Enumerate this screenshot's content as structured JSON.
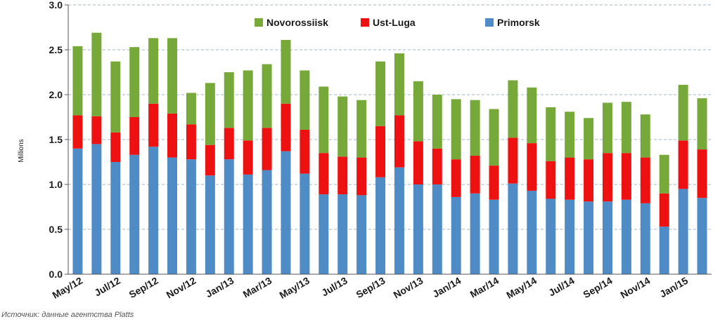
{
  "chart_data": {
    "type": "bar",
    "stacked": true,
    "ylabel": "Millions",
    "ylim": [
      0,
      3.0
    ],
    "yticks": [
      "0.0",
      "0.5",
      "1.0",
      "1.5",
      "2.0",
      "2.5",
      "3.0"
    ],
    "grid": true,
    "legend_position": "top-center",
    "categories": [
      "May/12",
      "Jun/12",
      "Jul/12",
      "Aug/12",
      "Sep/12",
      "Oct/12",
      "Nov/12",
      "Dec/12",
      "Jan/13",
      "Feb/13",
      "Mar/13",
      "Apr/13",
      "May/13",
      "Jun/13",
      "Jul/13",
      "Aug/13",
      "Sep/13",
      "Oct/13",
      "Nov/13",
      "Dec/13",
      "Jan/14",
      "Feb/14",
      "Mar/14",
      "Apr/14",
      "May/14",
      "Jun/14",
      "Jul/14",
      "Aug/14",
      "Sep/14",
      "Oct/14",
      "Nov/14",
      "Dec/14",
      "Jan/15",
      "Feb/15"
    ],
    "xtick_labels": [
      "May/12",
      "Jul/12",
      "Sep/12",
      "Nov/12",
      "Jan/13",
      "Mar/13",
      "May/13",
      "Jul/13",
      "Sep/13",
      "Nov/13",
      "Jan/14",
      "Mar/14",
      "May/14",
      "Jul/14",
      "Sep/14",
      "Nov/14",
      "Jan/15"
    ],
    "series": [
      {
        "name": "Primorsk",
        "color": "#4f8bc4",
        "values": [
          1.4,
          1.45,
          1.25,
          1.33,
          1.42,
          1.3,
          1.28,
          1.1,
          1.28,
          1.11,
          1.16,
          1.37,
          1.12,
          0.89,
          0.89,
          0.88,
          1.08,
          1.19,
          1.0,
          1.0,
          0.86,
          0.9,
          0.83,
          1.01,
          0.93,
          0.84,
          0.83,
          0.81,
          0.81,
          0.83,
          0.79,
          0.53,
          0.95,
          0.85
        ]
      },
      {
        "name": "Ust-Luga",
        "color": "#ee1111",
        "values": [
          0.37,
          0.31,
          0.33,
          0.42,
          0.48,
          0.49,
          0.39,
          0.34,
          0.35,
          0.38,
          0.47,
          0.53,
          0.49,
          0.46,
          0.42,
          0.42,
          0.57,
          0.58,
          0.48,
          0.4,
          0.42,
          0.42,
          0.38,
          0.51,
          0.53,
          0.42,
          0.47,
          0.47,
          0.54,
          0.52,
          0.51,
          0.37,
          0.54,
          0.54
        ]
      },
      {
        "name": "Novorossiisk",
        "color": "#76a93a",
        "values": [
          0.77,
          0.93,
          0.79,
          0.78,
          0.73,
          0.84,
          0.35,
          0.69,
          0.62,
          0.78,
          0.71,
          0.71,
          0.66,
          0.74,
          0.67,
          0.64,
          0.72,
          0.69,
          0.67,
          0.6,
          0.67,
          0.62,
          0.63,
          0.64,
          0.62,
          0.6,
          0.51,
          0.46,
          0.56,
          0.57,
          0.48,
          0.43,
          0.62,
          0.57
        ]
      }
    ],
    "legend_order": [
      "Novorossiisk",
      "Ust-Luga",
      "Primorsk"
    ]
  },
  "source_note": "Источник: данные агентства Platts"
}
